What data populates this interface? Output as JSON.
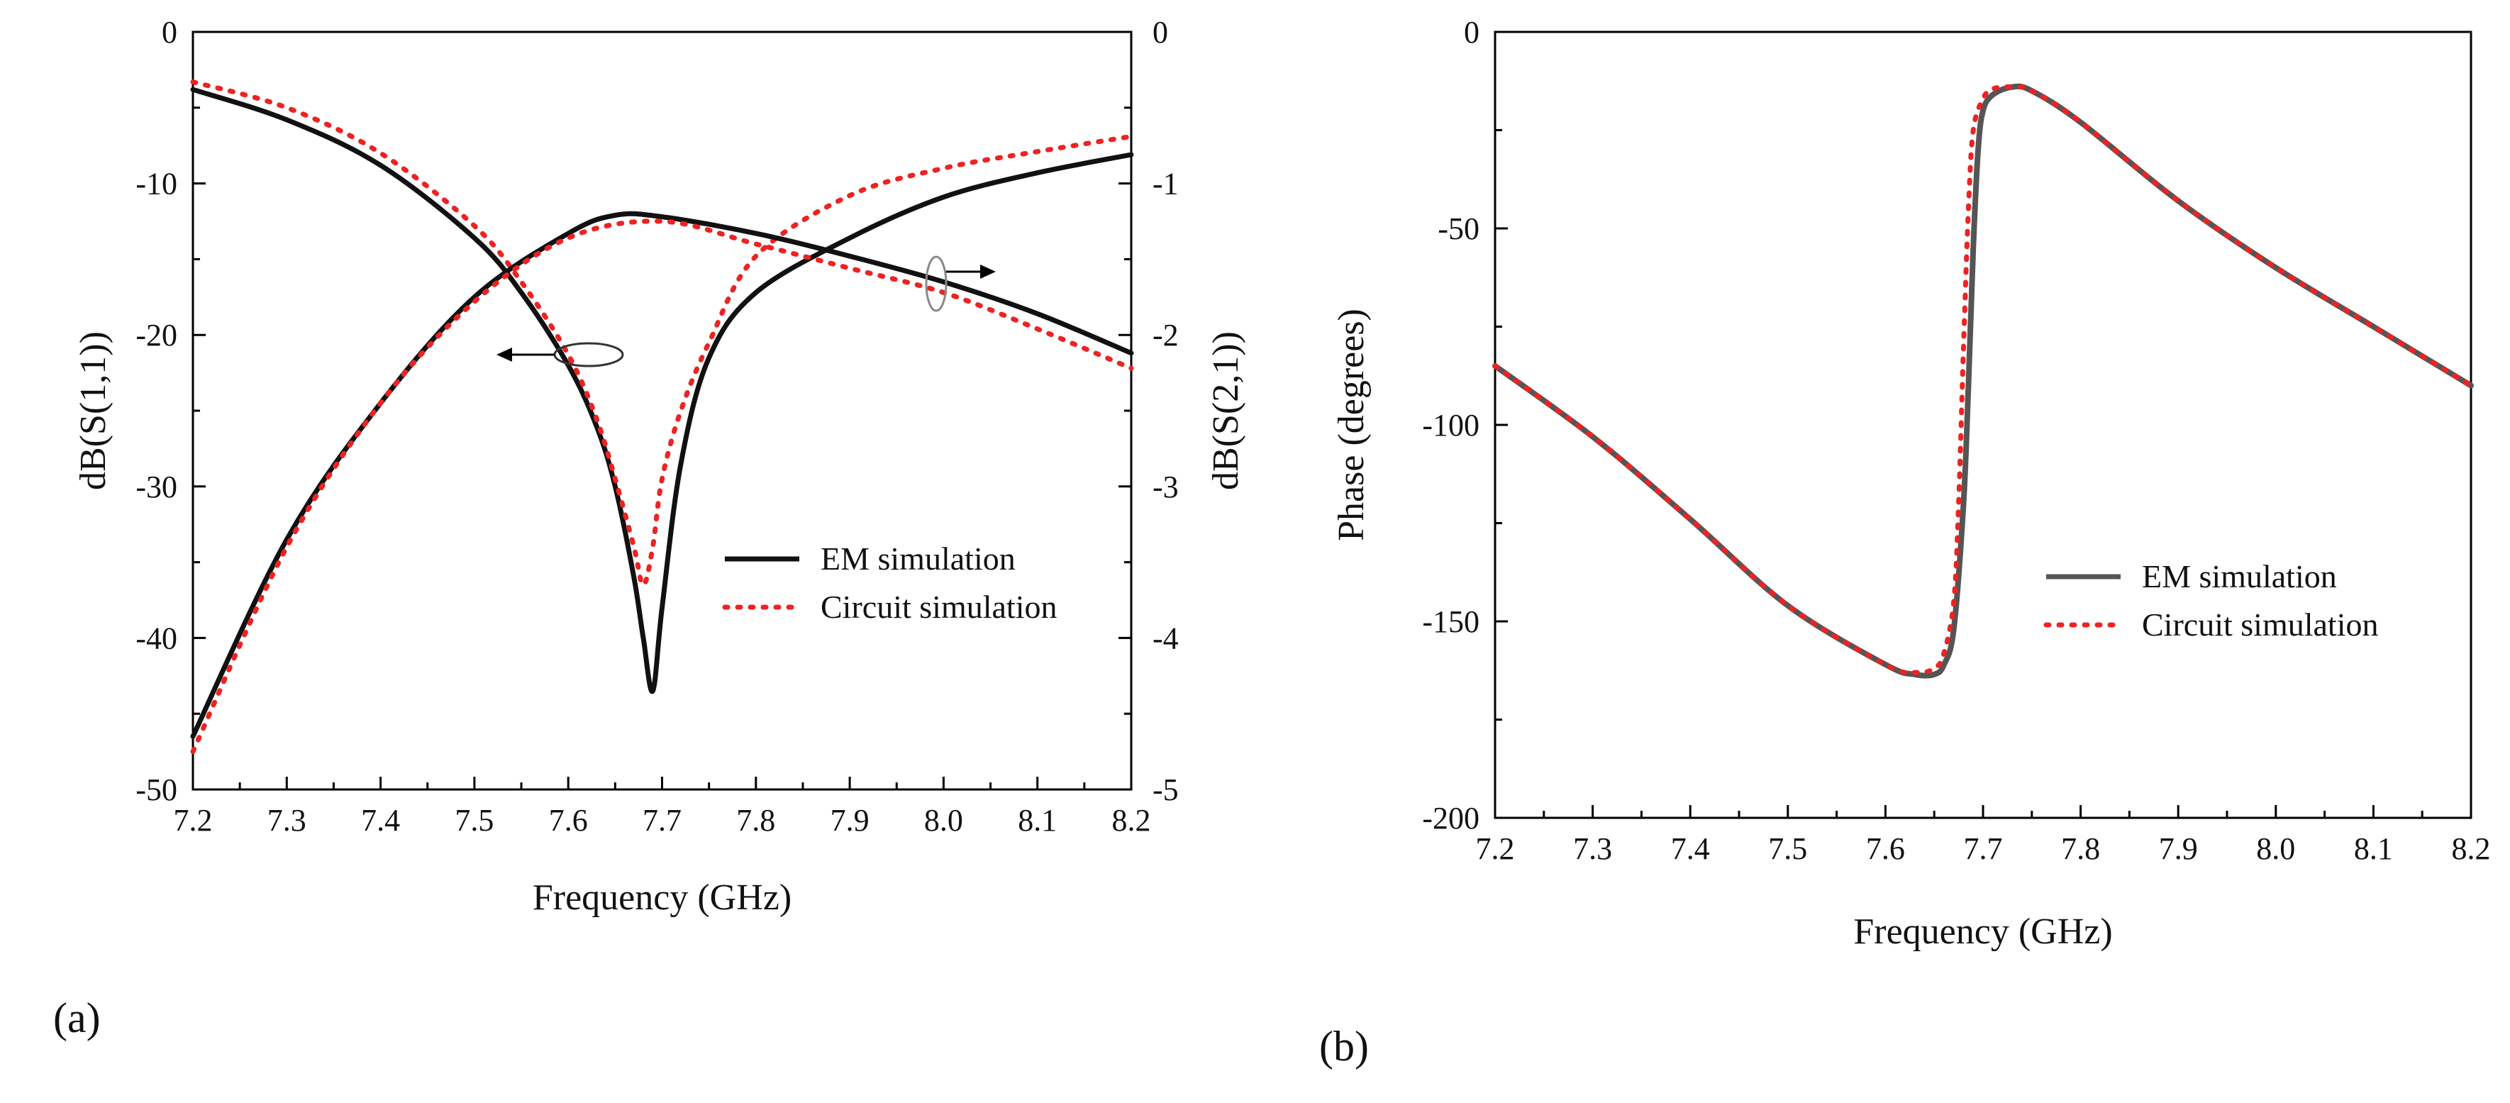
{
  "colors": {
    "em_a": "#111111",
    "em_b": "#555555",
    "circuit": "#ee2222",
    "axis": "#000000"
  },
  "panel_labels": {
    "a": "(a)",
    "b": "(b)"
  },
  "chart_data": [
    {
      "id": "a",
      "type": "line",
      "xlabel": "Frequency (GHz)",
      "ylabel_left": "dB(S(1,1))",
      "ylabel_right": "dB(S(2,1))",
      "xlim": [
        7.2,
        8.2
      ],
      "ylim_left": [
        -50,
        0
      ],
      "ylim_right": [
        -5,
        0
      ],
      "xticks": [
        "7.2",
        "7.3",
        "7.4",
        "7.5",
        "7.6",
        "7.7",
        "7.8",
        "7.9",
        "8.0",
        "8.1",
        "8.2"
      ],
      "yticks_left": [
        "0",
        "-10",
        "-20",
        "-30",
        "-40",
        "-50"
      ],
      "yticks_right": [
        "0",
        "-1",
        "-2",
        "-3",
        "-4",
        "-5"
      ],
      "legend": {
        "placement": "center-right",
        "em": "EM simulation",
        "circuit": "Circuit simulation"
      },
      "series": [
        {
          "name": "EM simulation",
          "quantity": "S11",
          "axis": "left",
          "style": "solid",
          "x": [
            7.2,
            7.3,
            7.4,
            7.5,
            7.55,
            7.6,
            7.63,
            7.65,
            7.67,
            7.68,
            7.69,
            7.7,
            7.72,
            7.75,
            7.8,
            7.9,
            8.0,
            8.1,
            8.2
          ],
          "y": [
            -3.8,
            -5.8,
            -8.8,
            -13.6,
            -17.2,
            -22,
            -26,
            -30,
            -36,
            -40,
            -43.5,
            -38,
            -28.5,
            -21.5,
            -17.2,
            -13.6,
            -10.9,
            -9.3,
            -8.1
          ]
        },
        {
          "name": "Circuit simulation",
          "quantity": "S11",
          "axis": "left",
          "style": "dotted",
          "x": [
            7.2,
            7.3,
            7.4,
            7.5,
            7.55,
            7.6,
            7.63,
            7.65,
            7.67,
            7.68,
            7.69,
            7.7,
            7.72,
            7.75,
            7.8,
            7.9,
            8.0,
            8.1,
            8.2
          ],
          "y": [
            -3.3,
            -5.0,
            -8.0,
            -12.8,
            -16.5,
            -21.3,
            -25.5,
            -29.5,
            -34,
            -36.5,
            -34,
            -29.5,
            -25,
            -20.5,
            -14.8,
            -10.8,
            -9.0,
            -7.9,
            -6.9
          ]
        },
        {
          "name": "EM simulation",
          "quantity": "S21",
          "axis": "right",
          "style": "solid",
          "x": [
            7.2,
            7.3,
            7.4,
            7.5,
            7.6,
            7.65,
            7.7,
            7.8,
            7.9,
            8.0,
            8.1,
            8.2
          ],
          "y": [
            -4.65,
            -3.35,
            -2.45,
            -1.75,
            -1.33,
            -1.21,
            -1.22,
            -1.33,
            -1.48,
            -1.65,
            -1.86,
            -2.12
          ]
        },
        {
          "name": "Circuit simulation",
          "quantity": "S21",
          "axis": "right",
          "style": "dotted",
          "x": [
            7.2,
            7.3,
            7.4,
            7.5,
            7.6,
            7.7,
            7.8,
            7.9,
            8.0,
            8.1,
            8.2
          ],
          "y": [
            -4.75,
            -3.4,
            -2.45,
            -1.78,
            -1.36,
            -1.25,
            -1.4,
            -1.56,
            -1.72,
            -1.96,
            -2.22
          ]
        }
      ]
    },
    {
      "id": "b",
      "type": "line",
      "xlabel": "Frequency (GHz)",
      "ylabel": "Phase (degrees)",
      "xlim": [
        7.2,
        8.2
      ],
      "ylim": [
        -200,
        0
      ],
      "xticks": [
        "7.2",
        "7.3",
        "7.4",
        "7.5",
        "7.6",
        "7.7",
        "7.8",
        "7.9",
        "8.0",
        "8.1",
        "8.2"
      ],
      "yticks": [
        "0",
        "-50",
        "-100",
        "-150",
        "-200"
      ],
      "legend": {
        "placement": "center-right",
        "em": "EM simulation",
        "circuit": "Circuit simulation"
      },
      "series": [
        {
          "name": "EM simulation",
          "style": "solid",
          "x": [
            7.2,
            7.3,
            7.4,
            7.5,
            7.6,
            7.63,
            7.65,
            7.66,
            7.67,
            7.68,
            7.685,
            7.69,
            7.695,
            7.7,
            7.71,
            7.73,
            7.75,
            7.8,
            7.9,
            8.0,
            8.1,
            8.2
          ],
          "y": [
            -85,
            -103,
            -124,
            -146,
            -161,
            -163.5,
            -163.5,
            -161,
            -152,
            -120,
            -90,
            -55,
            -30,
            -20,
            -16,
            -14,
            -15,
            -23,
            -43,
            -60,
            -75,
            -90
          ]
        },
        {
          "name": "Circuit simulation",
          "style": "dotted",
          "x": [
            7.2,
            7.3,
            7.4,
            7.5,
            7.6,
            7.63,
            7.65,
            7.66,
            7.67,
            7.675,
            7.68,
            7.685,
            7.69,
            7.7,
            7.71,
            7.73,
            7.75,
            7.8,
            7.9,
            8.0,
            8.1,
            8.2
          ],
          "y": [
            -85,
            -103,
            -124,
            -146,
            -161,
            -163,
            -162,
            -158,
            -145,
            -120,
            -80,
            -45,
            -25,
            -17,
            -14.5,
            -14,
            -15,
            -23,
            -43,
            -60,
            -75,
            -90
          ]
        }
      ]
    }
  ]
}
